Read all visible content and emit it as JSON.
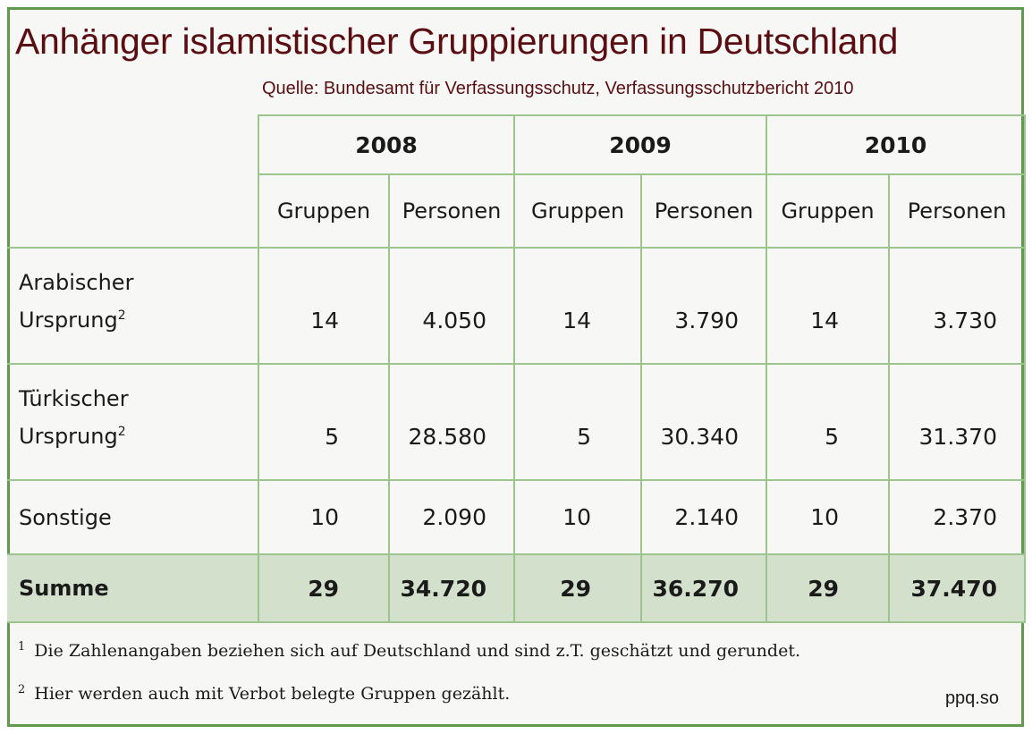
{
  "title": "Anhänger islamistischer Gruppierungen in Deutschland",
  "source": "Quelle: Bundesamt für Verfassungsschutz, Verfassungsschutzbericht 2010",
  "years": [
    "2008",
    "2009",
    "2010"
  ],
  "subheaders": {
    "groups": "Gruppen",
    "persons": "Personen"
  },
  "rows": [
    {
      "label_line1": "Arabischer",
      "label_line2": "Ursprung",
      "footnote_mark": "2",
      "values": [
        "14",
        "4.050",
        "14",
        "3.790",
        "14",
        "3.730"
      ]
    },
    {
      "label_line1": "Türkischer",
      "label_line2": "Ursprung",
      "footnote_mark": "2",
      "values": [
        "5",
        "28.580",
        "5",
        "30.340",
        "5",
        "31.370"
      ]
    },
    {
      "label_line1": "Sonstige",
      "values": [
        "10",
        "2.090",
        "10",
        "2.140",
        "10",
        "2.370"
      ]
    }
  ],
  "total": {
    "label": "Summe",
    "values": [
      "29",
      "34.720",
      "29",
      "36.270",
      "29",
      "37.470"
    ]
  },
  "footnotes": [
    {
      "mark": "1",
      "text": "Die Zahlenangaben beziehen sich auf Deutschland und sind z.T. geschätzt und gerundet."
    },
    {
      "mark": "2",
      "text": "Hier werden auch mit Verbot belegte Gruppen gezählt."
    }
  ],
  "watermark": "ppq.so",
  "colors": {
    "title": "#5a0e12",
    "border": "#5f9a4f",
    "grid": "#9cc48d",
    "total_bg": "#d3e1cc"
  }
}
